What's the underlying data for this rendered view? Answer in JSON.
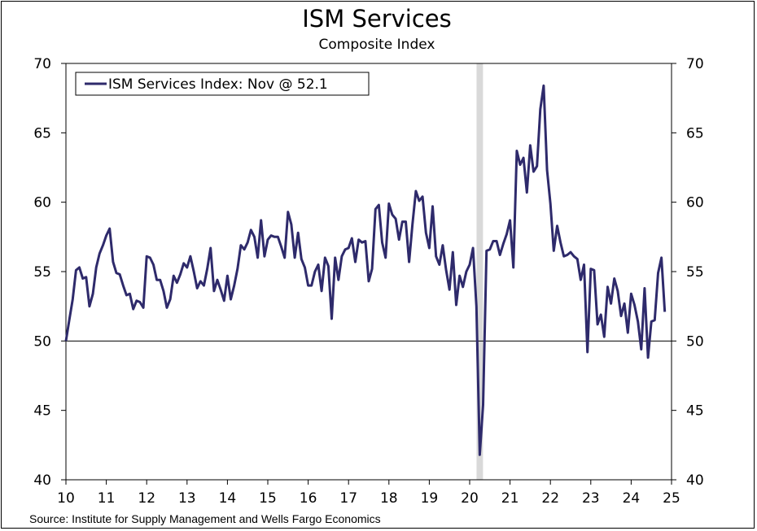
{
  "title": "ISM Services",
  "subtitle": "Composite Index",
  "source": "Source: Institute for Supply Management and Wells Fargo Economics",
  "chart_data": {
    "type": "line",
    "title": "ISM Services",
    "subtitle": "Composite Index",
    "xlabel": "",
    "ylabel": "",
    "ylim": [
      40,
      70
    ],
    "xlim": [
      2010,
      2025
    ],
    "y_ticks": [
      "70",
      "65",
      "60",
      "55",
      "50",
      "45",
      "40"
    ],
    "x_ticks": [
      "10",
      "11",
      "12",
      "13",
      "14",
      "15",
      "16",
      "17",
      "18",
      "19",
      "20",
      "21",
      "22",
      "23",
      "24",
      "25"
    ],
    "grid": false,
    "reference_line": 50,
    "recession_shading": [
      [
        2020.17,
        2020.33
      ]
    ],
    "legend": {
      "placement": "top-left",
      "entries": [
        "ISM Services Index: Nov @ 52.1"
      ]
    },
    "colors": {
      "series": "#2e2a6b",
      "recession": "#d9d9d9",
      "axis": "#000000"
    },
    "series": [
      {
        "name": "ISM Services Index: Nov @ 52.1",
        "x": [
          2010.0,
          2010.083,
          2010.167,
          2010.25,
          2010.333,
          2010.417,
          2010.5,
          2010.583,
          2010.667,
          2010.75,
          2010.833,
          2010.917,
          2011.0,
          2011.083,
          2011.167,
          2011.25,
          2011.333,
          2011.417,
          2011.5,
          2011.583,
          2011.667,
          2011.75,
          2011.833,
          2011.917,
          2012.0,
          2012.083,
          2012.167,
          2012.25,
          2012.333,
          2012.417,
          2012.5,
          2012.583,
          2012.667,
          2012.75,
          2012.833,
          2012.917,
          2013.0,
          2013.083,
          2013.167,
          2013.25,
          2013.333,
          2013.417,
          2013.5,
          2013.583,
          2013.667,
          2013.75,
          2013.833,
          2013.917,
          2014.0,
          2014.083,
          2014.167,
          2014.25,
          2014.333,
          2014.417,
          2014.5,
          2014.583,
          2014.667,
          2014.75,
          2014.833,
          2014.917,
          2015.0,
          2015.083,
          2015.167,
          2015.25,
          2015.333,
          2015.417,
          2015.5,
          2015.583,
          2015.667,
          2015.75,
          2015.833,
          2015.917,
          2016.0,
          2016.083,
          2016.167,
          2016.25,
          2016.333,
          2016.417,
          2016.5,
          2016.583,
          2016.667,
          2016.75,
          2016.833,
          2016.917,
          2017.0,
          2017.083,
          2017.167,
          2017.25,
          2017.333,
          2017.417,
          2017.5,
          2017.583,
          2017.667,
          2017.75,
          2017.833,
          2017.917,
          2018.0,
          2018.083,
          2018.167,
          2018.25,
          2018.333,
          2018.417,
          2018.5,
          2018.583,
          2018.667,
          2018.75,
          2018.833,
          2018.917,
          2019.0,
          2019.083,
          2019.167,
          2019.25,
          2019.333,
          2019.417,
          2019.5,
          2019.583,
          2019.667,
          2019.75,
          2019.833,
          2019.917,
          2020.0,
          2020.083,
          2020.167,
          2020.25,
          2020.333,
          2020.417,
          2020.5,
          2020.583,
          2020.667,
          2020.75,
          2020.833,
          2020.917,
          2021.0,
          2021.083,
          2021.167,
          2021.25,
          2021.333,
          2021.417,
          2021.5,
          2021.583,
          2021.667,
          2021.75,
          2021.833,
          2021.917,
          2022.0,
          2022.083,
          2022.167,
          2022.25,
          2022.333,
          2022.417,
          2022.5,
          2022.583,
          2022.667,
          2022.75,
          2022.833,
          2022.917,
          2023.0,
          2023.083,
          2023.167,
          2023.25,
          2023.333,
          2023.417,
          2023.5,
          2023.583,
          2023.667,
          2023.75,
          2023.833,
          2023.917,
          2024.0,
          2024.083,
          2024.167,
          2024.25,
          2024.333,
          2024.417,
          2024.5,
          2024.583,
          2024.667,
          2024.75,
          2024.833
        ],
        "values": [
          50.0,
          51.5,
          53.0,
          55.1,
          55.3,
          54.5,
          54.6,
          52.5,
          53.4,
          55.3,
          56.3,
          56.9,
          57.6,
          58.1,
          55.7,
          54.9,
          54.8,
          54.0,
          53.3,
          53.4,
          52.3,
          52.9,
          52.8,
          52.4,
          56.1,
          56.0,
          55.5,
          54.4,
          54.4,
          53.6,
          52.4,
          53.0,
          54.7,
          54.2,
          54.8,
          55.6,
          55.3,
          56.1,
          55.0,
          53.8,
          54.3,
          54.0,
          55.2,
          56.7,
          53.6,
          54.4,
          53.7,
          52.9,
          54.7,
          53.0,
          54.0,
          55.2,
          56.9,
          56.6,
          57.1,
          58.0,
          57.5,
          56.0,
          58.7,
          56.1,
          57.3,
          57.6,
          57.5,
          57.5,
          56.8,
          56.0,
          59.3,
          58.4,
          56.0,
          57.8,
          55.9,
          55.3,
          54.0,
          54.0,
          55.0,
          55.5,
          53.6,
          56.0,
          55.4,
          51.6,
          56.0,
          54.4,
          56.1,
          56.6,
          56.7,
          57.4,
          55.7,
          57.3,
          57.1,
          57.2,
          54.3,
          55.2,
          59.5,
          59.8,
          57.1,
          56.0,
          59.9,
          59.1,
          58.8,
          57.3,
          58.6,
          58.6,
          55.7,
          58.4,
          60.8,
          60.1,
          60.4,
          57.8,
          56.7,
          59.7,
          56.1,
          55.5,
          56.9,
          55.1,
          53.7,
          56.4,
          52.6,
          54.7,
          53.9,
          55.0,
          55.5,
          56.7,
          52.5,
          41.8,
          45.4,
          56.5,
          56.6,
          57.2,
          57.2,
          56.2,
          57.0,
          57.7,
          58.7,
          55.3,
          63.7,
          62.7,
          63.2,
          60.7,
          64.1,
          62.2,
          62.6,
          66.7,
          68.4,
          62.3,
          59.9,
          56.5,
          58.3,
          57.1,
          56.1,
          56.2,
          56.4,
          56.1,
          55.9,
          54.4,
          55.5,
          49.2,
          55.2,
          55.1,
          51.2,
          51.9,
          50.3,
          53.9,
          52.7,
          54.5,
          53.6,
          51.8,
          52.7,
          50.6,
          53.4,
          52.6,
          51.4,
          49.4,
          53.8,
          48.8,
          51.4,
          51.5,
          54.9,
          56.0,
          52.1
        ]
      }
    ]
  }
}
